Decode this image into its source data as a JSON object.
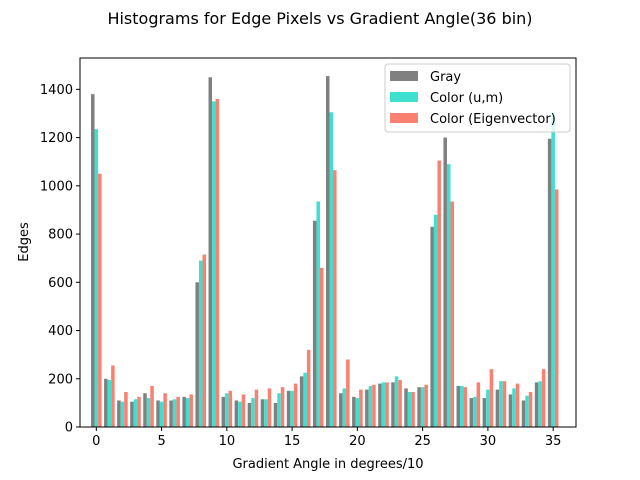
{
  "chart_data": {
    "type": "bar",
    "title": "Histograms for Edge Pixels vs Gradient Angle(36 bin)",
    "xlabel": "Gradient Angle in degrees/10",
    "ylabel": "Edges",
    "xlim": [
      -1.25,
      36.75
    ],
    "ylim": [
      0,
      1530
    ],
    "xticks": [
      0,
      5,
      10,
      15,
      20,
      25,
      30,
      35
    ],
    "yticks": [
      0,
      200,
      400,
      600,
      800,
      1000,
      1200,
      1400
    ],
    "legend_position": "top-right",
    "x": [
      0,
      1,
      2,
      3,
      4,
      5,
      6,
      7,
      8,
      9,
      10,
      11,
      12,
      13,
      14,
      15,
      16,
      17,
      18,
      19,
      20,
      21,
      22,
      23,
      24,
      25,
      26,
      27,
      28,
      29,
      30,
      31,
      32,
      33,
      34,
      35
    ],
    "series": [
      {
        "name": "Gray",
        "color": "#808080",
        "values": [
          1380,
          200,
          110,
          105,
          140,
          110,
          110,
          125,
          600,
          1450,
          125,
          110,
          100,
          115,
          100,
          150,
          210,
          855,
          1455,
          140,
          125,
          155,
          180,
          185,
          160,
          165,
          830,
          1200,
          170,
          120,
          120,
          155,
          135,
          110,
          185,
          1195
        ]
      },
      {
        "name": "Color (u,m)",
        "color": "#40e0d0",
        "values": [
          1235,
          195,
          105,
          115,
          120,
          105,
          115,
          120,
          690,
          1350,
          140,
          105,
          120,
          115,
          140,
          150,
          225,
          935,
          1305,
          160,
          120,
          170,
          185,
          210,
          145,
          165,
          880,
          1090,
          170,
          125,
          155,
          190,
          160,
          130,
          190,
          1305
        ]
      },
      {
        "name": "Color (Eigenvector)",
        "color": "#fa8072",
        "values": [
          1050,
          255,
          145,
          125,
          170,
          140,
          125,
          135,
          715,
          1360,
          150,
          135,
          155,
          160,
          165,
          180,
          320,
          660,
          1065,
          280,
          155,
          175,
          185,
          195,
          145,
          175,
          1105,
          935,
          165,
          185,
          240,
          190,
          180,
          145,
          240,
          985
        ]
      }
    ]
  }
}
